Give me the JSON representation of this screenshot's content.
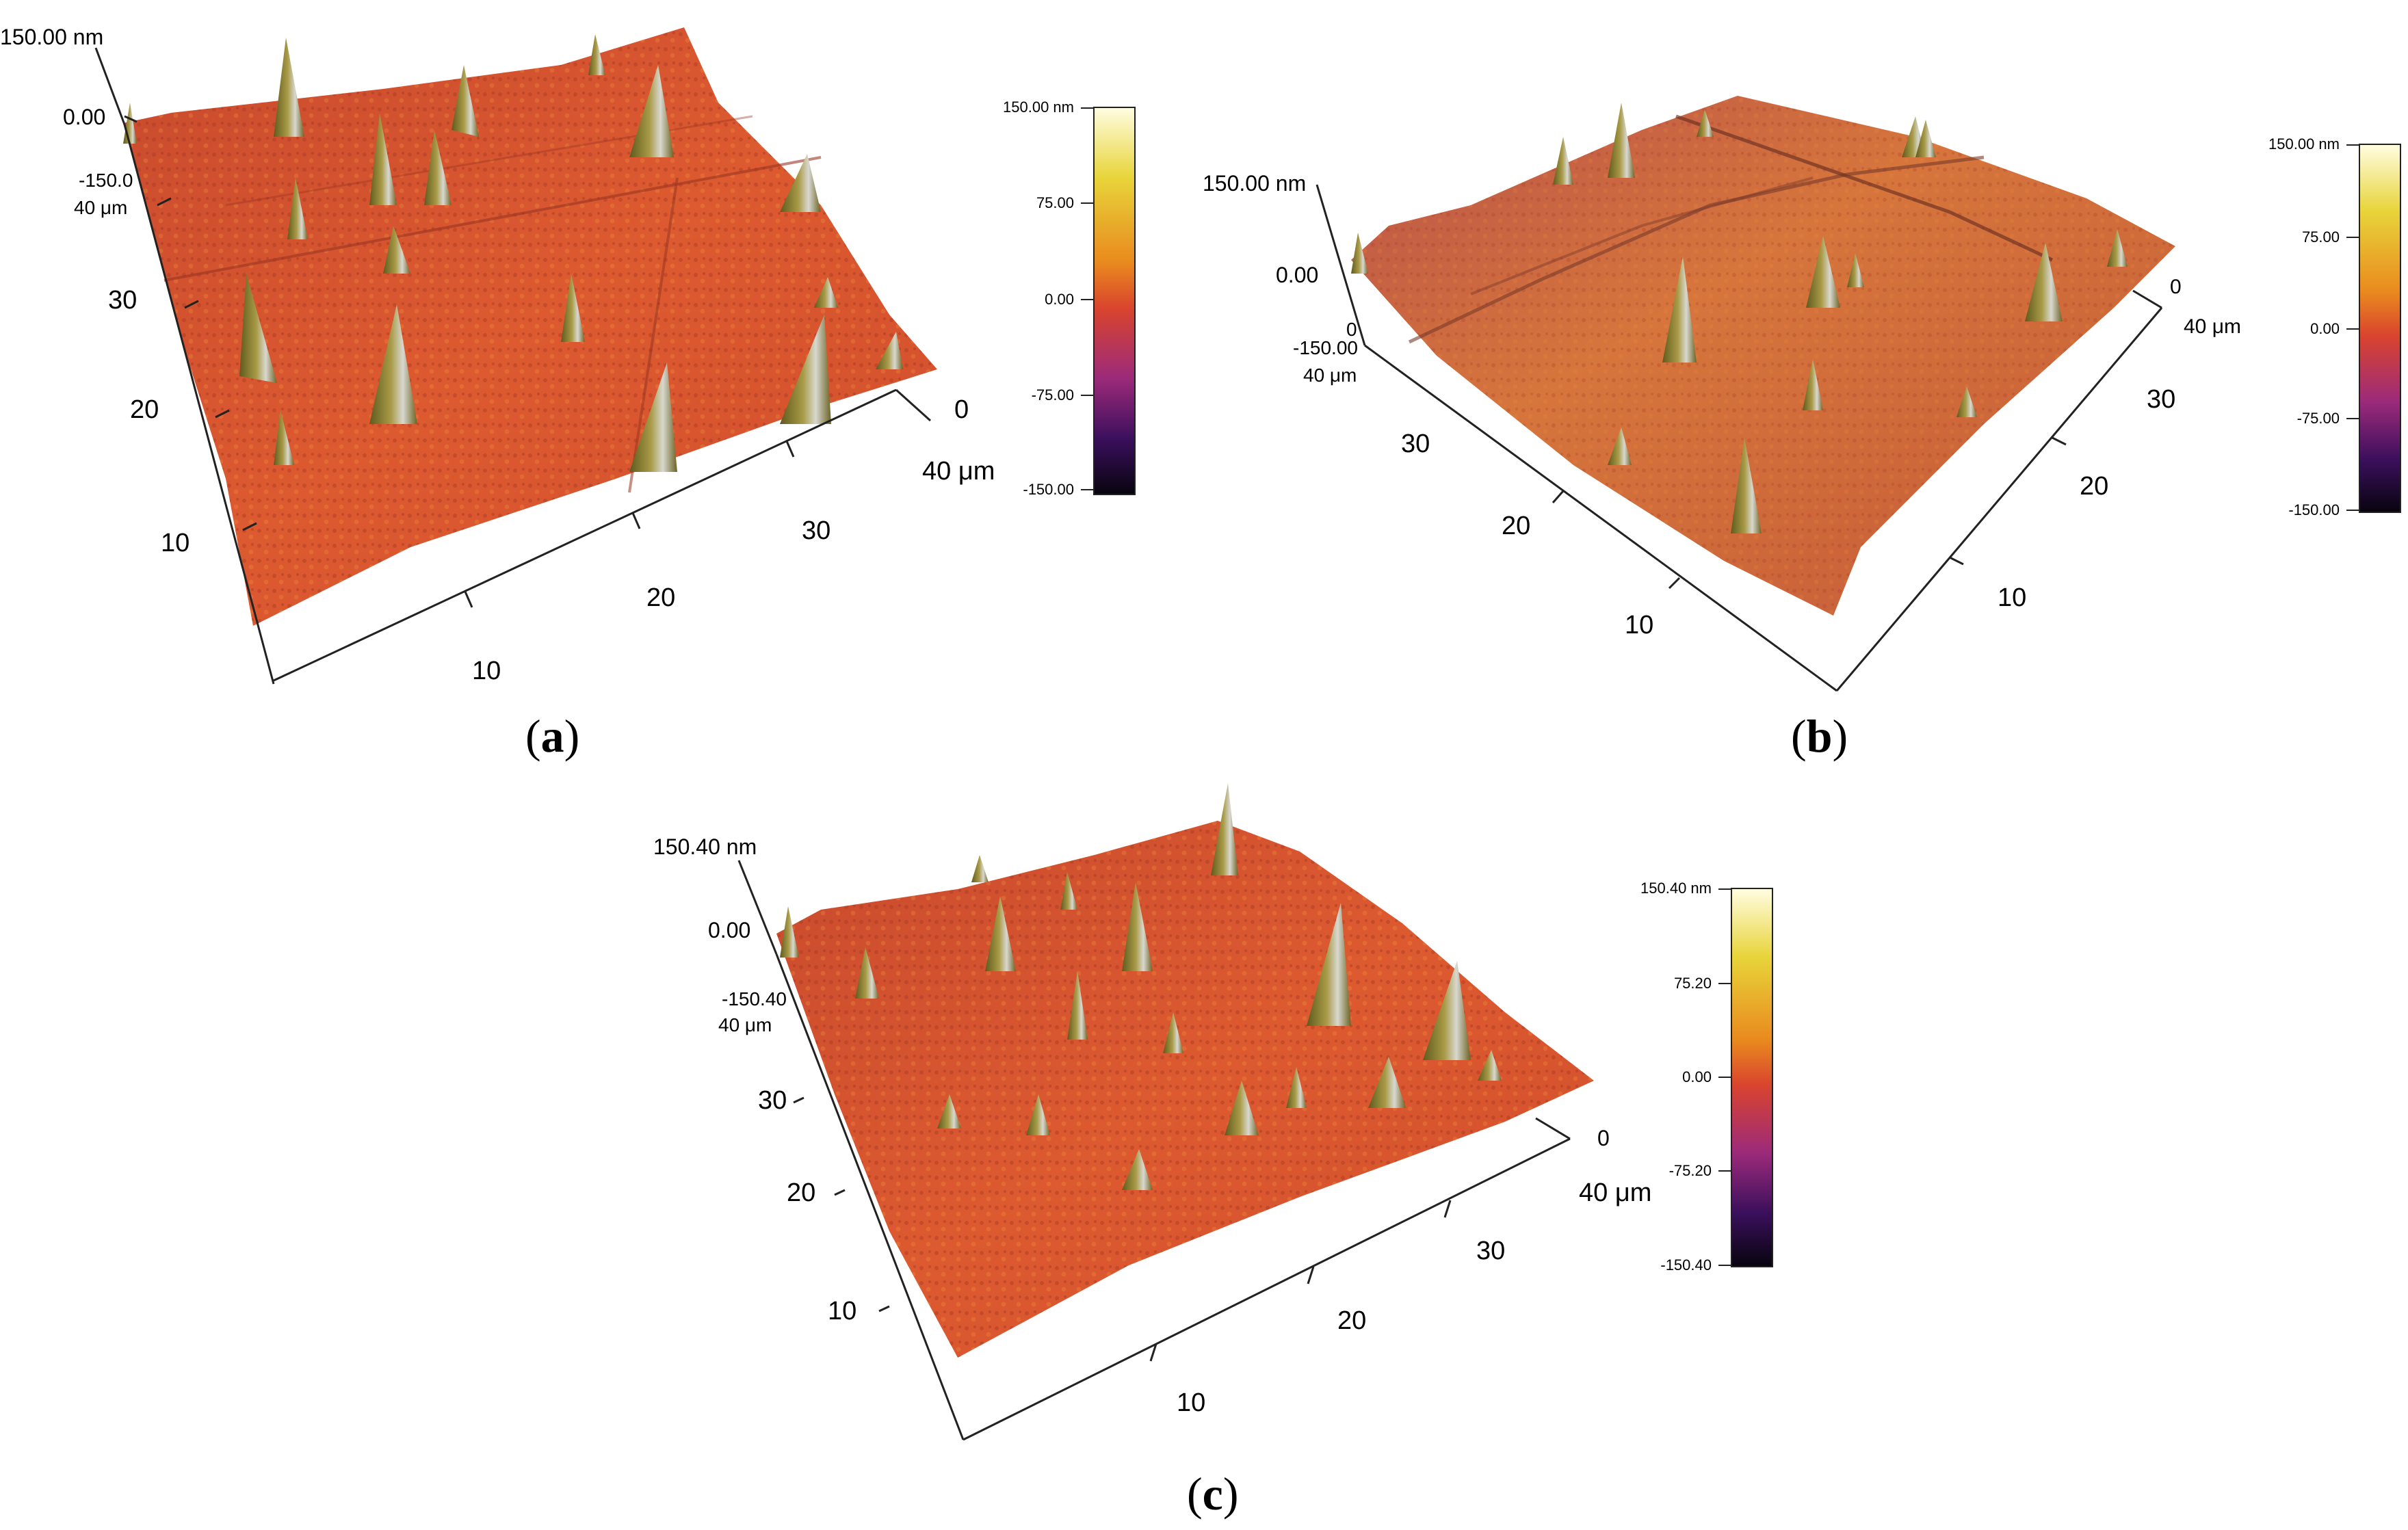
{
  "panels": [
    {
      "id": "a",
      "caption_letter": "a",
      "z_top": "150.00 nm",
      "z_zero": "0.00",
      "z_bottom": "-150.0",
      "y_max": "40 μm",
      "y_ticks": [
        "30",
        "20",
        "10"
      ],
      "x_ticks": [
        "10",
        "20",
        "30"
      ],
      "x_max": "40 μm",
      "origin": "0",
      "colorbar_ticks": [
        "150.00 nm",
        "75.00",
        "0.00",
        "-75.00",
        "-150.00"
      ]
    },
    {
      "id": "b",
      "caption_letter": "b",
      "z_top": "150.00 nm",
      "z_zero": "0.00",
      "z_bottom": "-150.00",
      "y_origin": "0",
      "y_max": "40 μm",
      "y_ticks": [
        "30",
        "20",
        "10"
      ],
      "x_ticks": [
        "10",
        "20",
        "30"
      ],
      "x_max": "40 μm",
      "origin": "0",
      "colorbar_ticks": [
        "150.00 nm",
        "75.00",
        "0.00",
        "-75.00",
        "-150.00"
      ]
    },
    {
      "id": "c",
      "caption_letter": "c",
      "z_top": "150.40 nm",
      "z_zero": "0.00",
      "z_bottom": "-150.40",
      "y_max": "40 μm",
      "y_ticks": [
        "30",
        "20",
        "10"
      ],
      "x_ticks": [
        "10",
        "20",
        "30"
      ],
      "x_max": "40 μm",
      "origin": "0",
      "colorbar_ticks": [
        "150.40 nm",
        "75.20",
        "0.00",
        "-75.20",
        "-150.40"
      ]
    }
  ],
  "colors": {
    "surface": "#d9542f",
    "surface_b": "#cf6a3c",
    "peak": "#8a7a2a",
    "colormap": [
      "#fffde0",
      "#e8d43a",
      "#e98a1e",
      "#d9442e",
      "#9c2a7a",
      "#3a0f5c",
      "#08040f"
    ]
  }
}
